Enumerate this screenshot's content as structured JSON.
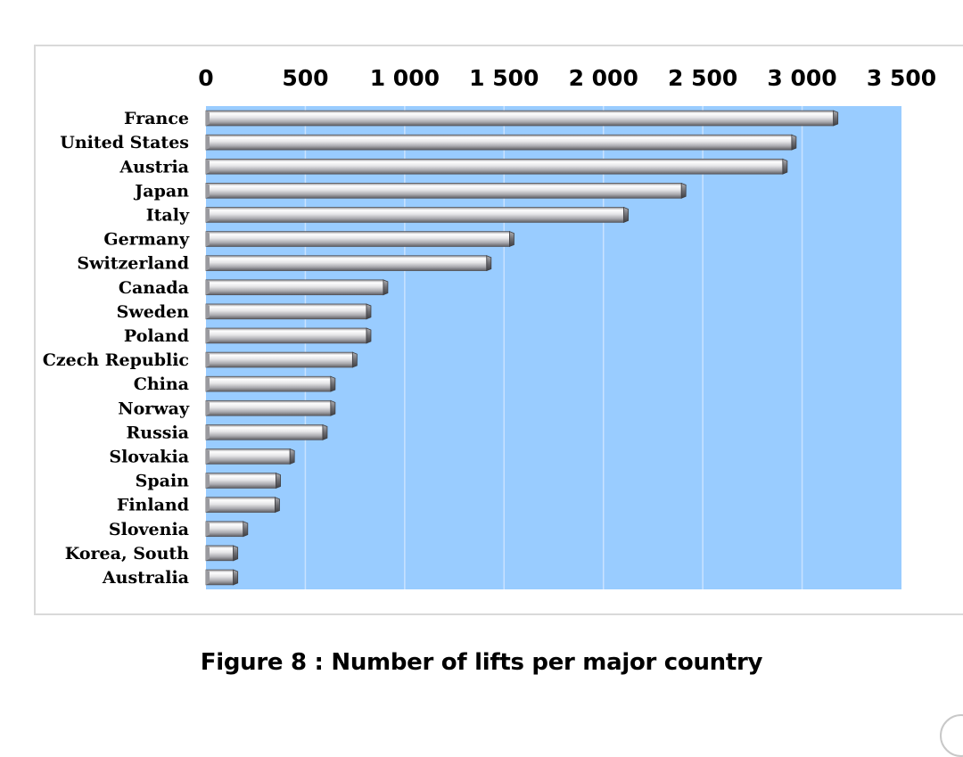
{
  "chart_data": {
    "type": "bar",
    "orientation": "horizontal",
    "title": "",
    "xlabel": "",
    "ylabel": "",
    "categories": [
      "France",
      "United States",
      "Austria",
      "Japan",
      "Italy",
      "Germany",
      "Switzerland",
      "Canada",
      "Sweden",
      "Poland",
      "Czech Republic",
      "China",
      "Norway",
      "Russia",
      "Slovakia",
      "Spain",
      "Finland",
      "Slovenia",
      "Korea, South",
      "Australia"
    ],
    "values": [
      3180,
      2970,
      2925,
      2415,
      2125,
      1550,
      1435,
      915,
      830,
      830,
      760,
      650,
      650,
      610,
      445,
      375,
      370,
      210,
      160,
      160
    ],
    "xlim": [
      0,
      3500
    ],
    "x_ticks": [
      0,
      500,
      1000,
      1500,
      2000,
      2500,
      3000,
      3500
    ],
    "x_tick_labels": [
      "0",
      "500",
      "1 000",
      "1 500",
      "2 000",
      "2 500",
      "3 000",
      "3 500"
    ],
    "x_axis_position": "top",
    "grid": true,
    "legend": "none",
    "colors": {
      "plot_background": "#99ccff",
      "gridline": "#c9e2ff",
      "bar_light": "#ffffff",
      "bar_mid": "#c9c9cc",
      "bar_dark": "#6e6e73"
    }
  },
  "caption": "Figure 8 : Number of lifts per major country"
}
